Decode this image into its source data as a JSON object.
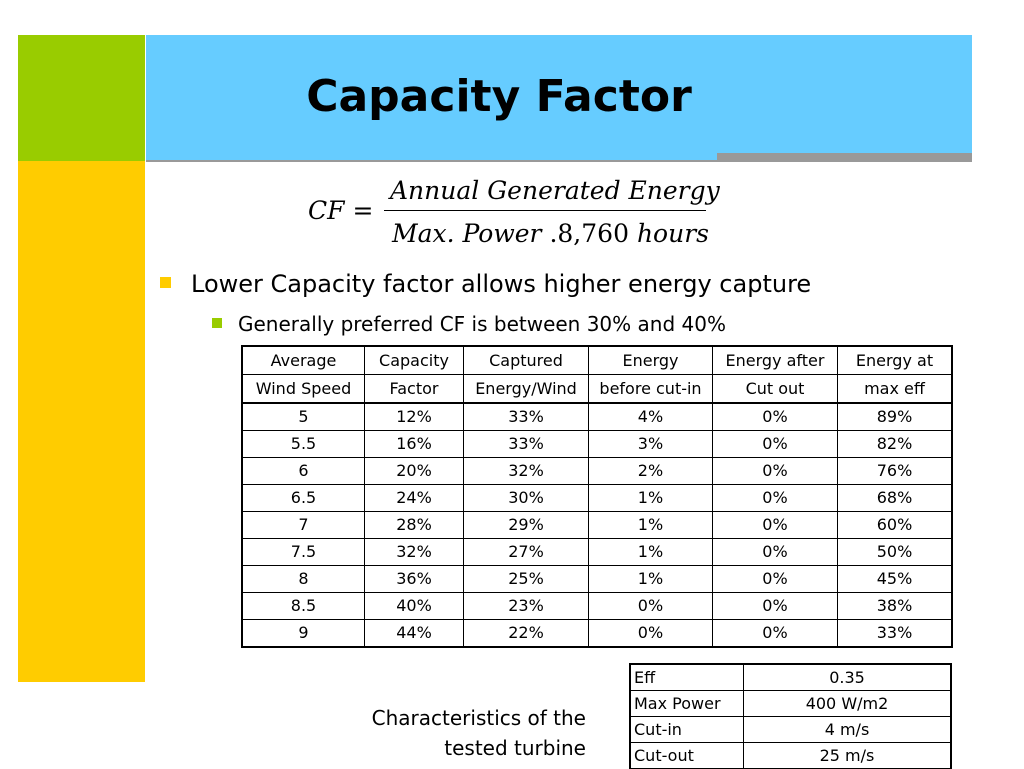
{
  "slide": {
    "title": "Capacity Factor"
  },
  "formula": {
    "lhs": "CF",
    "equals": "=",
    "numerator": "Annual Generated Energy",
    "den_maxpower": "Max. Power",
    "den_dot": ".",
    "den_number": "8,760",
    "den_hours": "hours"
  },
  "bullets": {
    "level1": "Lower Capacity factor allows higher energy capture",
    "level2": "Generally preferred CF is between 30% and 40%"
  },
  "table": {
    "header_top": [
      "Average",
      "Capacity",
      "Captured",
      "Energy",
      "Energy after",
      "Energy at"
    ],
    "header_bottom": [
      "Wind Speed",
      "Factor",
      "Energy/Wind",
      "before cut-in",
      "Cut out",
      "max eff"
    ],
    "rows": [
      [
        "5",
        "12%",
        "33%",
        "4%",
        "0%",
        "89%"
      ],
      [
        "5.5",
        "16%",
        "33%",
        "3%",
        "0%",
        "82%"
      ],
      [
        "6",
        "20%",
        "32%",
        "2%",
        "0%",
        "76%"
      ],
      [
        "6.5",
        "24%",
        "30%",
        "1%",
        "0%",
        "68%"
      ],
      [
        "7",
        "28%",
        "29%",
        "1%",
        "0%",
        "60%"
      ],
      [
        "7.5",
        "32%",
        "27%",
        "1%",
        "0%",
        "50%"
      ],
      [
        "8",
        "36%",
        "25%",
        "1%",
        "0%",
        "45%"
      ],
      [
        "8.5",
        "40%",
        "23%",
        "0%",
        "0%",
        "38%"
      ],
      [
        "9",
        "44%",
        "22%",
        "0%",
        "0%",
        "33%"
      ]
    ]
  },
  "caption": {
    "line1": "Characteristics of the",
    "line2": "tested turbine"
  },
  "turbine_specs": [
    [
      "Eff",
      "0.35"
    ],
    [
      "Max Power",
      "400 W/m2"
    ],
    [
      "Cut-in",
      "4 m/s"
    ],
    [
      "Cut-out",
      "25 m/s"
    ]
  ],
  "colors": {
    "header_blue": "#66ccff",
    "accent_green": "#99cc00",
    "accent_yellow": "#ffcc00",
    "divider_grey": "#999999"
  }
}
